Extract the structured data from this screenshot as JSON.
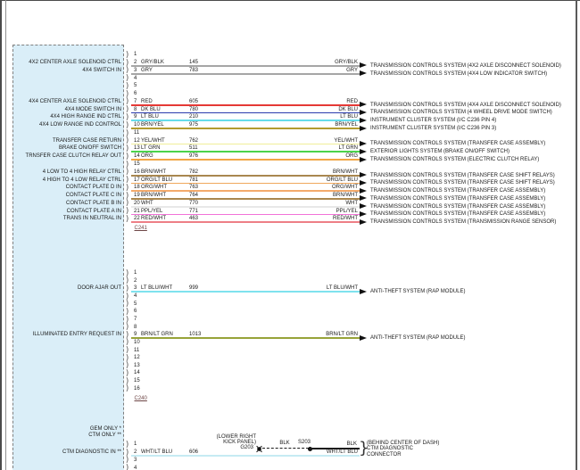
{
  "diagram": {
    "type": "automotive wiring diagram",
    "icons": {
      "pin_socket": ")",
      "brace": "}"
    },
    "connectors": [
      {
        "name": "C241",
        "pin_count": 22,
        "rows": [
          {
            "pin": 2,
            "signal": "4X2 CENTER AXLE SOLENOID CTRL",
            "wire": "GRY/BLK",
            "circuit": "145",
            "hex": "#a6a6a6",
            "dest": "TRANSMISSION CONTROLS SYSTEM (4X2 AXLE DISCONNECT SOLENOID)"
          },
          {
            "pin": 3,
            "signal": "4X4 SWITCH IN",
            "wire": "GRY",
            "circuit": "783",
            "hex": "#a6a6a6",
            "dest": "TRANSMISSION CONTROLS SYSTEM (4X4 LOW INDICATOR SWITCH)"
          },
          {
            "pin": 7,
            "signal": "4X4 CENTER AXLE SOLENOID CTRL",
            "wire": "RED",
            "circuit": "605",
            "hex": "#e53935",
            "dest": "TRANSMISSION CONTROLS SYSTEM (4X4 AXLE DISCONNECT SOLENOID)"
          },
          {
            "pin": 8,
            "signal": "4X4 MODE SWITCH IN",
            "wire": "DK BLU",
            "circuit": "780",
            "hex": "#2b3cae",
            "dest": "TRANSMISSION CONTROLS SYSTEM (4 WHEEL DRIVE MODE SWITCH)"
          },
          {
            "pin": 9,
            "signal": "4X4 HIGH RANGE IND CTRL",
            "wire": "LT BLU",
            "circuit": "210",
            "hex": "#66dcea",
            "dest": "INSTRUMENT CLUSTER SYSTEM (I/C C236 PIN 4)"
          },
          {
            "pin": 10,
            "signal": "4X4 LOW RANGE IND CONTROL",
            "wire": "BRN/YEL",
            "circuit": "975",
            "hex": "#b29c2f",
            "dest": "INSTRUMENT CLUSTER SYSTEM (I/C C236 PIN 3)"
          },
          {
            "pin": 12,
            "signal": "TRANSFER CASE RETURN",
            "wire": "YEL/WHT",
            "circuit": "762",
            "hex": "#f0ee9a",
            "dest": "TRANSMISSION CONTROLS SYSTEM (TRANSFER CASE ASSEMBLY)"
          },
          {
            "pin": 13,
            "signal": "BRAKE ON/OFF SWITCH",
            "wire": "LT GRN",
            "circuit": "511",
            "hex": "#4bd34b",
            "dest": "EXTERIOR LIGHTS SYSTEM (BRAKE ON/OFF SWITCH)"
          },
          {
            "pin": 14,
            "signal": "TRNSFER CASE CLUTCH RELAY OUT",
            "wire": "ORG",
            "circuit": "976",
            "hex": "#f1a545",
            "dest": "TRANSMISSION CONTROLS SYSTEM (ELECTRIC CLUTCH RELAY)"
          },
          {
            "pin": 16,
            "signal": "4 LOW TO 4 HIGH RELAY CTRL",
            "wire": "BRN/WHT",
            "circuit": "782",
            "hex": "#a9874f",
            "dest": "TRANSMISSION CONTROLS SYSTEM (TRANSFER CASE SHIFT RELAYS)"
          },
          {
            "pin": 17,
            "signal": "4 HIGH TO 4 LOW RELAY CTRL",
            "wire": "ORG/LT BLU",
            "circuit": "781",
            "hex": "#f0a85c",
            "dest": "TRANSMISSION CONTROLS SYSTEM (TRANSFER CASE SHIFT RELAYS)"
          },
          {
            "pin": 18,
            "signal": "CONTACT PLATE D IN",
            "wire": "ORG/WHT",
            "circuit": "763",
            "hex": "#f3aa6c",
            "dest": "TRANSMISSION CONTROLS SYSTEM (TRANSFER CASE ASSEMBLY)"
          },
          {
            "pin": 19,
            "signal": "CONTACT PLATE C IN",
            "wire": "BRN/WHT",
            "circuit": "764",
            "hex": "#a9874f",
            "dest": "TRANSMISSION CONTROLS SYSTEM (TRANSFER CASE ASSEMBLY)"
          },
          {
            "pin": 20,
            "signal": "CONTACT PLATE B IN",
            "wire": "WHT",
            "circuit": "770",
            "hex": "#e8e8e8",
            "dest": "TRANSMISSION CONTROLS SYSTEM (TRANSFER CASE ASSEMBLY)"
          },
          {
            "pin": 21,
            "signal": "CONTACT PLATE A IN",
            "wire": "PPL/YEL",
            "circuit": "771",
            "hex": "#f273d8",
            "dest": "TRANSMISSION CONTROLS SYSTEM (TRANSFER CASE ASSEMBLY)"
          },
          {
            "pin": 22,
            "signal": "TRANS IN NEUTRAL IN",
            "wire": "RED/WHT",
            "circuit": "463",
            "hex": "#ee7f86",
            "dest": "TRANSMISSION CONTROLS SYSTEM (TRANSMISSION RANGE SENSOR)"
          }
        ]
      },
      {
        "name": "C240",
        "pin_count": 16,
        "rows": [
          {
            "pin": 3,
            "signal": "DOOR AJAR OUT",
            "wire": "LT BLU/WHT",
            "circuit": "999",
            "hex": "#7fe2ee",
            "dest": "ANTI-THEFT SYSTEM (RAP MODULE)"
          },
          {
            "pin": 9,
            "signal": "ILLUMINATED ENTRY REQUEST IN",
            "wire": "BRN/LT GRN",
            "circuit": "1013",
            "hex": "#97a339",
            "dest": "ANTI-THEFT SYSTEM (RAP MODULE)"
          }
        ]
      },
      {
        "name": "",
        "pin_count": 4,
        "rows": [
          {
            "pin": 2,
            "signal": "CTM DIAGNOSTIC IN **",
            "wire": "WHT/LT BLU",
            "circuit": "606",
            "hex": "#c6ebf3",
            "dest": ""
          }
        ]
      }
    ],
    "notes": {
      "line1": "GEM ONLY *",
      "line2": "CTM ONLY **"
    },
    "ctm_branch": {
      "location_line1": "(LOWER RIGHT",
      "location_line2": "KICK PANEL)",
      "ground_id": "G203",
      "wire1": "BLK",
      "splice_id": "S203",
      "wire2": "BLK",
      "wire3": "WHT/LT BLU",
      "dest_line1": "(BEHIND CENTER OF DASH)",
      "dest_line2": "CTM DIAGNOSTIC",
      "dest_line3": "CONNECTOR"
    }
  }
}
